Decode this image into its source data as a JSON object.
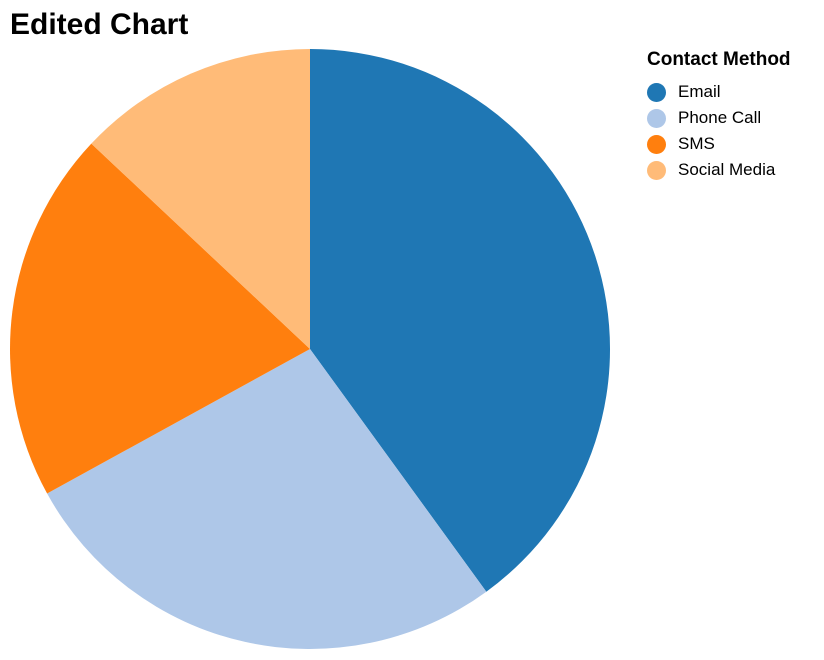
{
  "chart_data": {
    "type": "pie",
    "title": "Edited Chart",
    "legend": {
      "title": "Contact Method",
      "placement": "top-right"
    },
    "categories": [
      "Email",
      "Phone Call",
      "SMS",
      "Social Media"
    ],
    "values": [
      40,
      27,
      20,
      13
    ],
    "colors": [
      "#1f77b4",
      "#aec7e8",
      "#ff7f0e",
      "#ffbb78"
    ]
  }
}
